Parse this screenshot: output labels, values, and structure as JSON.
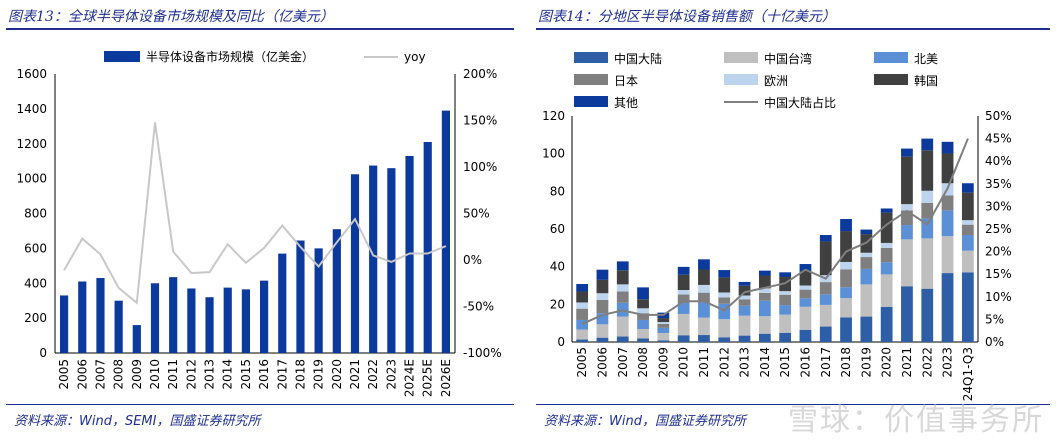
{
  "left_panel": {
    "title": "图表13：全球半导体设备市场规模及同比（亿美元）",
    "source": "资料来源：Wind，SEMI，国盛证券研究所"
  },
  "right_panel": {
    "title": "图表14：分地区半导体设备销售额（十亿美元）",
    "source": "资料来源：Wind，国盛证券研究所"
  },
  "watermark": "雪球：价值事务所",
  "colors": {
    "navy": "#0b3a9c",
    "grey_line": "#c8c8c8",
    "title_blue": "#1f2f8f",
    "china": "#2e5fa6",
    "taiwan": "#bfbfbf",
    "na": "#5b8fd6",
    "japan": "#7f7f7f",
    "europe": "#bcd4ee",
    "korea": "#404040",
    "other": "#0b3a9c",
    "share": "#7f7f7f"
  },
  "chart_data": [
    {
      "type": "bar",
      "categories": [
        "2005",
        "2006",
        "2007",
        "2008",
        "2009",
        "2010",
        "2011",
        "2012",
        "2013",
        "2014",
        "2015",
        "2016",
        "2017",
        "2018",
        "2019",
        "2020",
        "2021",
        "2022",
        "2023",
        "2024E",
        "2025E",
        "2026E"
      ],
      "series": [
        {
          "name": "半导体设备市场规模（亿美金）",
          "kind": "bar",
          "axis": "left",
          "values": [
            330,
            410,
            430,
            300,
            160,
            400,
            435,
            370,
            320,
            375,
            365,
            415,
            570,
            645,
            600,
            710,
            1025,
            1075,
            1060,
            1130,
            1210,
            1390
          ]
        },
        {
          "name": "yoy",
          "kind": "line",
          "axis": "right",
          "values": [
            -11,
            23,
            6,
            -30,
            -46,
            148,
            9,
            -14,
            -13,
            17,
            -3,
            13,
            37,
            14,
            -7,
            19,
            44,
            5,
            -2,
            7,
            7,
            15
          ]
        }
      ],
      "ylim_left": [
        0,
        1600
      ],
      "yticks_left": [
        "0",
        "200",
        "400",
        "600",
        "800",
        "1000",
        "1200",
        "1400",
        "1600"
      ],
      "ylim_right": [
        -100,
        200
      ],
      "yticks_right": [
        "-100%",
        "-50%",
        "0%",
        "50%",
        "100%",
        "150%",
        "200%"
      ],
      "legend_position": "top"
    },
    {
      "type": "bar",
      "stacked": true,
      "categories": [
        "2005",
        "2006",
        "2007",
        "2008",
        "2009",
        "2010",
        "2011",
        "2012",
        "2013",
        "2014",
        "2015",
        "2016",
        "2017",
        "2018",
        "2019",
        "2020",
        "2021",
        "2022",
        "2023",
        "24Q1-Q3"
      ],
      "series": [
        {
          "name": "中国大陆",
          "kind": "bar",
          "values": [
            1.3,
            2.3,
            2.9,
            1.9,
            0.9,
            3.6,
            3.7,
            2.5,
            3.4,
            4.4,
            4.9,
            6.5,
            8.2,
            13.1,
            13.5,
            18.7,
            29.6,
            28.3,
            36.6,
            37.0
          ]
        },
        {
          "name": "中国台湾",
          "kind": "bar",
          "values": [
            5.3,
            7.1,
            10.6,
            5.0,
            3.9,
            11.3,
            9.3,
            9.6,
            10.6,
            9.3,
            9.6,
            12.2,
            11.5,
            10.2,
            17.1,
            17.2,
            24.9,
            26.7,
            19.6,
            11.5
          ]
        },
        {
          "name": "北美",
          "kind": "bar",
          "values": [
            5.1,
            5.9,
            7.3,
            4.8,
            2.7,
            5.8,
            8.0,
            8.2,
            5.3,
            8.2,
            5.1,
            4.5,
            5.6,
            5.8,
            8.2,
            6.5,
            7.6,
            10.5,
            13.7,
            8.3
          ]
        },
        {
          "name": "日本",
          "kind": "bar",
          "values": [
            6.0,
            7.0,
            6.0,
            3.6,
            2.1,
            4.5,
            5.2,
            3.4,
            3.4,
            4.2,
            5.5,
            4.6,
            6.5,
            9.5,
            6.3,
            7.6,
            7.8,
            8.3,
            7.9,
            5.5
          ]
        },
        {
          "name": "欧洲",
          "kind": "bar",
          "values": [
            3.3,
            3.6,
            3.8,
            2.6,
            1.0,
            2.4,
            4.1,
            2.6,
            2.0,
            2.4,
            1.9,
            2.2,
            3.7,
            3.9,
            2.3,
            2.6,
            3.3,
            6.5,
            6.5,
            2.4
          ]
        },
        {
          "name": "韩国",
          "kind": "bar",
          "values": [
            5.8,
            7.1,
            7.5,
            4.8,
            2.1,
            8.1,
            8.2,
            8.0,
            5.2,
            6.8,
            7.5,
            7.7,
            17.9,
            16.4,
            9.9,
            16.1,
            25.2,
            21.5,
            15.8,
            14.6
          ]
        },
        {
          "name": "其他",
          "kind": "bar",
          "values": [
            4.0,
            5.4,
            4.7,
            6.3,
            2.9,
            4.2,
            5.4,
            3.9,
            2.0,
            2.6,
            2.5,
            3.7,
            3.4,
            6.4,
            2.4,
            2.2,
            4.3,
            6.2,
            6.2,
            5.0
          ]
        },
        {
          "name": "中国大陆占比",
          "kind": "line",
          "axis": "right",
          "values": [
            4,
            6,
            7,
            6,
            6,
            9,
            9,
            7,
            11,
            12,
            13,
            16,
            14,
            20,
            22,
            26,
            29,
            26,
            34,
            45
          ]
        }
      ],
      "ylim_left": [
        0,
        120
      ],
      "yticks_left": [
        "0",
        "20",
        "40",
        "60",
        "80",
        "100",
        "120"
      ],
      "ylim_right": [
        0,
        50
      ],
      "yticks_right": [
        "0%",
        "5%",
        "10%",
        "15%",
        "20%",
        "25%",
        "30%",
        "35%",
        "40%",
        "45%",
        "50%"
      ],
      "legend_position": "top"
    }
  ]
}
